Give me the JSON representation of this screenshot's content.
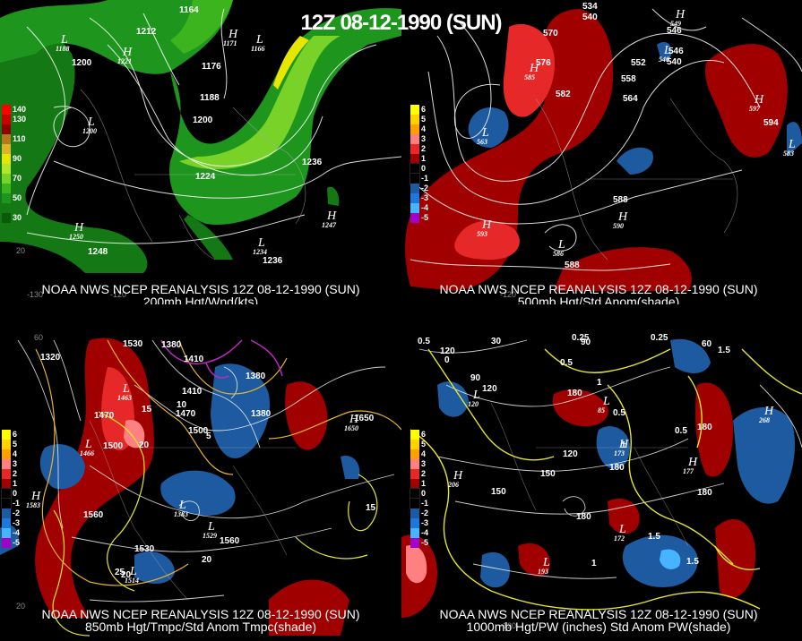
{
  "main_title": "12Z 08-12-1990 (SUN)",
  "panels": [
    {
      "id": "200mb",
      "line1": "NOAA NWS NCEP REANALYSIS 12Z 08-12-1990 (SUN)",
      "line2": "200mb Hgt/Wnd(kts)",
      "colorbar": [
        {
          "label": "140",
          "color": "#ff0000"
        },
        {
          "label": "130",
          "color": "#c80000"
        },
        {
          "label": "",
          "color": "#8c0000"
        },
        {
          "label": "110",
          "color": "#b4781e"
        },
        {
          "label": "",
          "color": "#dcb428"
        },
        {
          "label": "90",
          "color": "#e6e600"
        },
        {
          "label": "",
          "color": "#b4e628"
        },
        {
          "label": "70",
          "color": "#78d228"
        },
        {
          "label": "",
          "color": "#3cb41e"
        },
        {
          "label": "50",
          "color": "#1e961e"
        },
        {
          "label": "",
          "color": "#147814"
        },
        {
          "label": "30",
          "color": "#0a5a0a"
        }
      ],
      "contour_labels": [
        "1164",
        "1212",
        "1200",
        "1176",
        "1188",
        "1200",
        "1224",
        "1236",
        "1236",
        "1248"
      ],
      "centers": [
        {
          "type": "L",
          "value": "1188"
        },
        {
          "type": "H",
          "value": "1221"
        },
        {
          "type": "H",
          "value": "1171"
        },
        {
          "type": "L",
          "value": "1166"
        },
        {
          "type": "L",
          "value": "1200"
        },
        {
          "type": "H",
          "value": "1250"
        },
        {
          "type": "L",
          "value": "1234"
        },
        {
          "type": "H",
          "value": "1247"
        }
      ],
      "ticks": [
        "-130",
        "-120",
        "20"
      ]
    },
    {
      "id": "500mb",
      "line1": "NOAA NWS NCEP REANALYSIS 12Z 08-12-1990 (SUN)",
      "line2": "500mb Hgt/Std Anom(shade)",
      "colorbar": [
        {
          "label": "6",
          "color": "#ffff00"
        },
        {
          "label": "5",
          "color": "#ffd200"
        },
        {
          "label": "4",
          "color": "#ffa000"
        },
        {
          "label": "3",
          "color": "#ff8080"
        },
        {
          "label": "2",
          "color": "#e62828"
        },
        {
          "label": "1",
          "color": "#a00000"
        },
        {
          "label": "0",
          "color": "#000000"
        },
        {
          "label": "-1",
          "color": "#000000"
        },
        {
          "label": "-2",
          "color": "#1e5aa0"
        },
        {
          "label": "-3",
          "color": "#1e78dc"
        },
        {
          "label": "-4",
          "color": "#46b4ff"
        },
        {
          "label": "-5",
          "color": "#a000c8"
        }
      ],
      "contour_labels": [
        "534",
        "540",
        "546",
        "552",
        "558",
        "564",
        "570",
        "576",
        "582",
        "588",
        "588",
        "594",
        "546",
        "540"
      ],
      "centers": [
        {
          "type": "H",
          "value": "585"
        },
        {
          "type": "L",
          "value": "563"
        },
        {
          "type": "H",
          "value": "593"
        },
        {
          "type": "L",
          "value": "586"
        },
        {
          "type": "H",
          "value": "590"
        },
        {
          "type": "H",
          "value": "597"
        },
        {
          "type": "L",
          "value": "583"
        },
        {
          "type": "H",
          "value": "549"
        },
        {
          "type": "L",
          "value": "540"
        }
      ],
      "ticks": [
        "-120"
      ]
    },
    {
      "id": "850mb",
      "line1": "NOAA NWS NCEP REANALYSIS 12Z 08-12-1990 (SUN)",
      "line2": "850mb Hgt/Tmpc/Std Anom Tmpc(shade)",
      "colorbar": [
        {
          "label": "6",
          "color": "#ffff00"
        },
        {
          "label": "5",
          "color": "#ffd200"
        },
        {
          "label": "4",
          "color": "#ffa000"
        },
        {
          "label": "3",
          "color": "#ff8080"
        },
        {
          "label": "2",
          "color": "#e62828"
        },
        {
          "label": "1",
          "color": "#a00000"
        },
        {
          "label": "0",
          "color": "#000000"
        },
        {
          "label": "-1",
          "color": "#000000"
        },
        {
          "label": "-2",
          "color": "#1e5aa0"
        },
        {
          "label": "-3",
          "color": "#1e78dc"
        },
        {
          "label": "-4",
          "color": "#46b4ff"
        },
        {
          "label": "-5",
          "color": "#a000c8"
        }
      ],
      "contour_labels": [
        "1320",
        "1380",
        "1530",
        "1410",
        "1380",
        "1470",
        "1410",
        "1500",
        "1470",
        "1500",
        "1560",
        "1530",
        "1560",
        "1380",
        "1650"
      ],
      "temp_labels": [
        "15",
        "20",
        "20",
        "5",
        "10",
        "15",
        "20",
        "25"
      ],
      "centers": [
        {
          "type": "H",
          "value": "1583"
        },
        {
          "type": "L",
          "value": "1466"
        },
        {
          "type": "L",
          "value": "1463"
        },
        {
          "type": "L",
          "value": "1383"
        },
        {
          "type": "L",
          "value": "1529"
        },
        {
          "type": "L",
          "value": "1514"
        },
        {
          "type": "H",
          "value": "1650"
        }
      ],
      "ticks": [
        "60",
        "20"
      ]
    },
    {
      "id": "1000mb",
      "line1": "NOAA NWS NCEP REANALYSIS 12Z 08-12-1990 (SUN)",
      "line2": "1000mb Hgt/PW (inches) Std Anom PW(shade)",
      "colorbar": [
        {
          "label": "6",
          "color": "#ffff00"
        },
        {
          "label": "5",
          "color": "#ffd200"
        },
        {
          "label": "4",
          "color": "#ffa000"
        },
        {
          "label": "3",
          "color": "#ff8080"
        },
        {
          "label": "2",
          "color": "#e62828"
        },
        {
          "label": "1",
          "color": "#a00000"
        },
        {
          "label": "0",
          "color": "#000000"
        },
        {
          "label": "-1",
          "color": "#000000"
        },
        {
          "label": "-2",
          "color": "#1e5aa0"
        },
        {
          "label": "-3",
          "color": "#1e78dc"
        },
        {
          "label": "-4",
          "color": "#46b4ff"
        },
        {
          "label": "-5",
          "color": "#a000c8"
        }
      ],
      "contour_labels": [
        "30",
        "0",
        "90",
        "120",
        "180",
        "150",
        "150",
        "180",
        "180",
        "120",
        "60",
        "90",
        "120",
        "180",
        "180"
      ],
      "pw_labels": [
        "0.5",
        "0.25",
        "0.5",
        "0.25",
        "1.5",
        "1",
        "0.5",
        "0.5",
        "1",
        "1.5",
        "1.5",
        "1"
      ],
      "centers": [
        {
          "type": "H",
          "value": "206"
        },
        {
          "type": "L",
          "value": "85"
        },
        {
          "type": "H",
          "value": "173"
        },
        {
          "type": "H",
          "value": "177"
        },
        {
          "type": "L",
          "value": "172"
        },
        {
          "type": "L",
          "value": "193"
        },
        {
          "type": "H",
          "value": "268"
        },
        {
          "type": "L",
          "value": "120"
        }
      ],
      "ticks": [
        "-120"
      ]
    }
  ]
}
